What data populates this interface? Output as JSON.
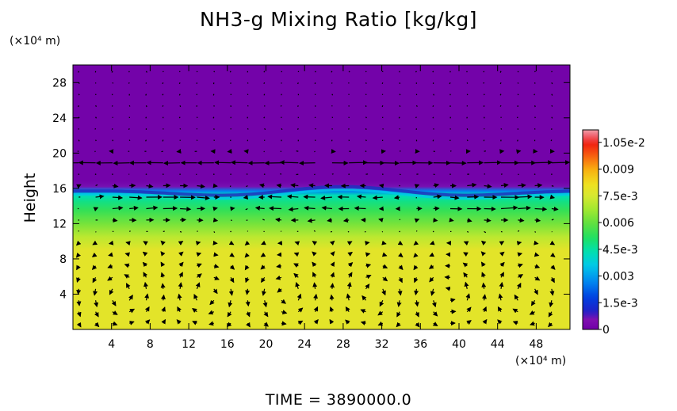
{
  "chart_data": {
    "type": "heatmap",
    "title": "NH3-g Mixing Ratio [kg/kg]",
    "ylabel": "Height",
    "x_unit_label": "(×10⁴ m)",
    "y_unit_label": "(×10⁴ m)",
    "xlim": [
      0,
      51.5
    ],
    "ylim": [
      0,
      30
    ],
    "x_ticks": [
      4,
      8,
      12,
      16,
      20,
      24,
      28,
      32,
      36,
      40,
      44,
      48
    ],
    "y_ticks": [
      4,
      8,
      12,
      16,
      20,
      24,
      28
    ],
    "x_tick_labels": [
      "4",
      "8",
      "12",
      "16",
      "20",
      "24",
      "28",
      "32",
      "36",
      "40",
      "44",
      "48"
    ],
    "y_tick_labels": [
      "4",
      "8",
      "12",
      "16",
      "20",
      "24",
      "28"
    ],
    "colorbar": {
      "range": [
        0,
        0.0112
      ],
      "tick_values": [
        0,
        0.0015,
        0.003,
        0.0045,
        0.006,
        0.0075,
        0.009,
        0.0105
      ],
      "tick_labels": [
        "0",
        "1.5e-3",
        "0.003",
        "4.5e-3",
        "0.006",
        "7.5e-3",
        "0.009",
        "1.05e-2"
      ]
    },
    "field_profile": {
      "heights": [
        0,
        9,
        10.5,
        12,
        13.5,
        14.5,
        15.2,
        15.7,
        16.2,
        16.8,
        30
      ],
      "values": [
        0.0078,
        0.0078,
        0.0071,
        0.0062,
        0.0054,
        0.0048,
        0.0043,
        0.0026,
        0.0006,
        0.0001,
        0.0001
      ]
    },
    "tropopause_wave": {
      "base_height": 15.6,
      "amplitude": 0.6,
      "crest_x": 28
    },
    "vector_field": {
      "lower_cell_centers_x": [
        5,
        14,
        22,
        31,
        39,
        47
      ],
      "lower_cell_center_height": 4,
      "jet_heights": [
        19,
        15,
        13
      ]
    },
    "colors": {
      "upper": "#7000A8",
      "lower": "#D0E830",
      "frame": "#000000",
      "vectors": "#000000"
    },
    "time_label": "TIME = 3890000.0"
  }
}
